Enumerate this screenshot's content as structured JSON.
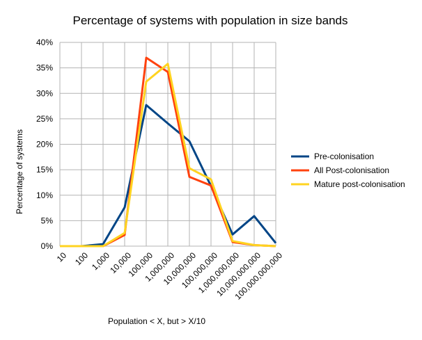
{
  "chart_data": {
    "type": "line",
    "title": "Percentage of systems with population in size bands",
    "xlabel": "Population < X, but > X/10",
    "ylabel": "Percentage of systems",
    "categories": [
      "10",
      "100",
      "1,000",
      "10,000",
      "100,000",
      "1,000,000",
      "10,000,000",
      "100,000,000",
      "1,000,000,000",
      "10,000,000,000",
      "100,000,000,000"
    ],
    "ylim": [
      0,
      40
    ],
    "y_ticks": [
      "0%",
      "5%",
      "10%",
      "15%",
      "20%",
      "25%",
      "30%",
      "35%",
      "40%"
    ],
    "y_tick_values": [
      0,
      5,
      10,
      15,
      20,
      25,
      30,
      35,
      40
    ],
    "grid": "both",
    "legend_position": "right",
    "series": [
      {
        "name": "Pre-colonisation",
        "color": "#004586",
        "values": [
          0,
          0,
          0.4,
          7.6,
          27.7,
          24.1,
          20.6,
          11.8,
          2.3,
          5.9,
          0.6
        ]
      },
      {
        "name": "All Post-colonisation",
        "color": "#ff420e",
        "values": [
          0,
          0,
          0,
          2.2,
          37.0,
          34.2,
          13.6,
          11.9,
          0.8,
          0.2,
          0
        ]
      },
      {
        "name": "Mature post-colonisation",
        "color": "#ffd320",
        "values": [
          0,
          0,
          0,
          2.6,
          32.3,
          35.8,
          15.3,
          13.1,
          1.0,
          0.2,
          0
        ]
      }
    ]
  }
}
